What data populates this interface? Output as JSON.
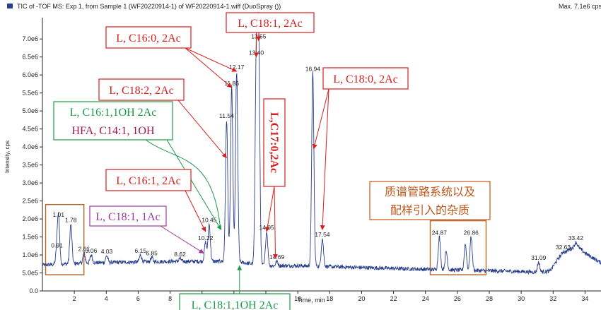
{
  "chart_data": {
    "type": "line",
    "title": "TIC of -TOF MS: Exp 1, from Sample 1 (WF20220914-1) of WF20220914-1.wiff (DuoSpray ())",
    "max_label": "Max. 7.1e6 cps.",
    "xlabel": "Time, min",
    "ylabel": "Intensity, cps",
    "xlim": [
      0,
      35
    ],
    "ylim": [
      0,
      7200000
    ],
    "x_ticks": [
      2,
      4,
      6,
      8,
      10,
      12,
      14,
      16,
      18,
      20,
      22,
      24,
      26,
      28,
      30,
      32,
      34
    ],
    "y_ticks": [
      {
        "value": 0,
        "label": "0.0"
      },
      {
        "value": 500000,
        "label": "5.0e5"
      },
      {
        "value": 1000000,
        "label": "1.0e6"
      },
      {
        "value": 1500000,
        "label": "1.5e6"
      },
      {
        "value": 2000000,
        "label": "2.0e6"
      },
      {
        "value": 2500000,
        "label": "2.5e6"
      },
      {
        "value": 3000000,
        "label": "3.0e6"
      },
      {
        "value": 3500000,
        "label": "3.5e6"
      },
      {
        "value": 4000000,
        "label": "4.0e6"
      },
      {
        "value": 4500000,
        "label": "4.5e6"
      },
      {
        "value": 5000000,
        "label": "5.0e6"
      },
      {
        "value": 5500000,
        "label": "5.5e6"
      },
      {
        "value": 6000000,
        "label": "6.0e6"
      },
      {
        "value": 6500000,
        "label": "6.5e6"
      },
      {
        "value": 7000000,
        "label": "7.0e6"
      }
    ],
    "baseline": [
      [
        0,
        720000
      ],
      [
        3,
        780000
      ],
      [
        8,
        820000
      ],
      [
        10,
        820000
      ],
      [
        12,
        820000
      ],
      [
        14,
        700000
      ],
      [
        16,
        700000
      ],
      [
        20,
        650000
      ],
      [
        24,
        600000
      ],
      [
        28,
        560000
      ],
      [
        30,
        540000
      ],
      [
        31,
        520000
      ],
      [
        31.8,
        550000
      ],
      [
        32.4,
        950000
      ],
      [
        33,
        1150000
      ],
      [
        33.5,
        1250000
      ],
      [
        34,
        1050000
      ],
      [
        35,
        780000
      ]
    ],
    "peaks": [
      {
        "t": 0.91,
        "y": 1150000,
        "label": "0.91"
      },
      {
        "t": 1.01,
        "y": 2000000,
        "label": "1.01"
      },
      {
        "t": 1.78,
        "y": 1850000,
        "label": "1.78"
      },
      {
        "t": 2.61,
        "y": 1050000,
        "label": "2.61"
      },
      {
        "t": 3.06,
        "y": 1000000,
        "label": "3.06"
      },
      {
        "t": 4.03,
        "y": 980000,
        "label": "4.03"
      },
      {
        "t": 6.15,
        "y": 1000000,
        "label": "6.15"
      },
      {
        "t": 6.85,
        "y": 930000,
        "label": "6.85"
      },
      {
        "t": 8.62,
        "y": 900000,
        "label": "8.62"
      },
      {
        "t": 10.22,
        "y": 1350000,
        "label": "10.22"
      },
      {
        "t": 10.45,
        "y": 1850000,
        "label": "10.45"
      },
      {
        "t": 11.54,
        "y": 4750000,
        "label": "11.54"
      },
      {
        "t": 11.86,
        "y": 5650000,
        "label": "11.86"
      },
      {
        "t": 12.17,
        "y": 6100000,
        "label": "12.17"
      },
      {
        "t": 13.4,
        "y": 6500000,
        "label": "13.40"
      },
      {
        "t": 13.55,
        "y": 6950000,
        "label": "13.55"
      },
      {
        "t": 14.05,
        "y": 1650000,
        "label": "14.05"
      },
      {
        "t": 14.69,
        "y": 820000,
        "label": "14.69"
      },
      {
        "t": 16.94,
        "y": 6050000,
        "label": "16.94"
      },
      {
        "t": 17.54,
        "y": 1450000,
        "label": "17.54"
      },
      {
        "t": 24.87,
        "y": 1500000,
        "label": "24.87"
      },
      {
        "t": 25.3,
        "y": 1100000,
        "label": ""
      },
      {
        "t": 26.5,
        "y": 1300000,
        "label": ""
      },
      {
        "t": 26.86,
        "y": 1500000,
        "label": "26.86"
      },
      {
        "t": 31.09,
        "y": 800000,
        "label": "31.09"
      },
      {
        "t": 32.63,
        "y": 1100000,
        "label": "32.63"
      },
      {
        "t": 33.42,
        "y": 1350000,
        "label": "33.42"
      }
    ],
    "annotations": [
      {
        "text": "L, C16:0, 2Ac",
        "color": "#d81e1e",
        "vertical": false,
        "pointers": [
          [
            11.86,
            5650000
          ],
          [
            12.17,
            6100000
          ]
        ]
      },
      {
        "text": "L, C18:1, 2Ac",
        "color": "#d81e1e",
        "vertical": false,
        "pointers": [
          [
            13.55,
            6950000
          ],
          [
            13.4,
            6500000
          ]
        ]
      },
      {
        "text": "L, C18:2, 2Ac",
        "color": "#d81e1e",
        "vertical": false,
        "pointers": [
          [
            11.54,
            3700000
          ]
        ]
      },
      {
        "text": "L,C17:0,2Ac",
        "color": "#d81e1e",
        "vertical": true,
        "pointers": [
          [
            14.05,
            1650000
          ],
          [
            14.6,
            900000
          ]
        ]
      },
      {
        "text": "L, C18:0, 2Ac",
        "color": "#d81e1e",
        "vertical": false,
        "pointers": [
          [
            17.0,
            3950000
          ],
          [
            17.54,
            1700000
          ]
        ]
      },
      {
        "text": "L, C16:1, 2Ac",
        "color": "#d81e1e",
        "vertical": false,
        "pointers": [
          [
            10.22,
            1650000
          ]
        ]
      },
      {
        "text": "L, C18:1, 1Ac",
        "color": "#9b3aa0",
        "vertical": false,
        "pointers": [
          [
            10.1,
            1050000
          ]
        ]
      },
      {
        "text": "L, C16:1,1OH 2Ac",
        "color": "#1a9b4a",
        "vertical": false,
        "pointers": [
          [
            11.2,
            1700000
          ]
        ]
      },
      {
        "text": "HFA, C14:1, 1OH",
        "color": "#9b1a4a",
        "vertical": false,
        "pointers": []
      },
      {
        "text": "L, C18:1,1OH 2Ac",
        "color": "#1a9b4a",
        "vertical": false,
        "pointers": [
          [
            12.35,
            700000
          ]
        ]
      },
      {
        "text": "质谱管路系统以及",
        "color": "#c0571a",
        "vertical": false,
        "pointers": []
      },
      {
        "text": "配样引入的杂质",
        "color": "#c0571a",
        "vertical": false,
        "pointers": []
      }
    ],
    "highlight_boxes": [
      {
        "t0": 0.2,
        "t1": 2.6,
        "y0": 450000,
        "y1": 2400000
      },
      {
        "t0": 24.3,
        "t1": 27.8,
        "y0": 450000,
        "y1": 1950000
      }
    ],
    "colors": {
      "trace": "#2a3f8c",
      "axis": "#222222",
      "box": "#b0682a"
    }
  }
}
